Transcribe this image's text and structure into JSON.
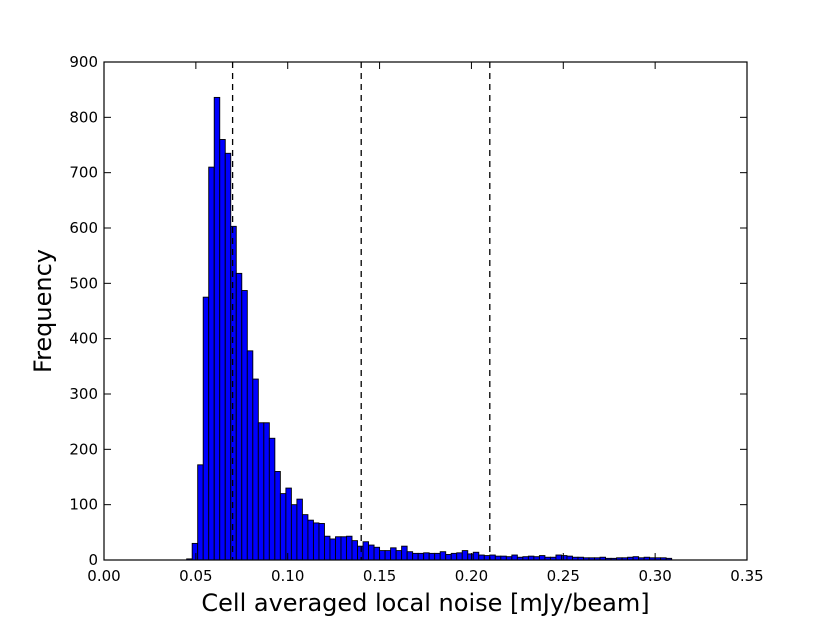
{
  "chart_data": {
    "type": "bar",
    "title": "",
    "xlabel": "Cell averaged local noise [mJy/beam]",
    "ylabel": "Frequency",
    "xlim": [
      0.0,
      0.35
    ],
    "ylim": [
      0,
      900
    ],
    "x_ticks": [
      "0.00",
      "0.05",
      "0.10",
      "0.15",
      "0.20",
      "0.25",
      "0.30",
      "0.35"
    ],
    "y_ticks": [
      "0",
      "100",
      "200",
      "300",
      "400",
      "500",
      "600",
      "700",
      "800",
      "900"
    ],
    "bar_color": "#0000ff",
    "edge_color": "#000000",
    "bins": {
      "start": 0.045,
      "width": 0.003,
      "counts": [
        2,
        30,
        172,
        475,
        710,
        836,
        760,
        735,
        603,
        518,
        487,
        378,
        327,
        248,
        248,
        220,
        160,
        120,
        130,
        100,
        110,
        82,
        72,
        67,
        66,
        43,
        38,
        42,
        42,
        43,
        35,
        25,
        33,
        27,
        23,
        17,
        17,
        22,
        17,
        25,
        15,
        12,
        12,
        13,
        12,
        12,
        15,
        10,
        12,
        13,
        17,
        11,
        14,
        9,
        8,
        9,
        7,
        7,
        6,
        9,
        5,
        6,
        7,
        6,
        8,
        5,
        5,
        9,
        8,
        7,
        5,
        5,
        4,
        4,
        4,
        5,
        3,
        3,
        4,
        4,
        5,
        6,
        4,
        5,
        4,
        4,
        4,
        3
      ]
    },
    "reference_lines": [
      {
        "x": 0.07,
        "style": "dashed"
      },
      {
        "x": 0.14,
        "style": "dashed"
      },
      {
        "x": 0.21,
        "style": "dashed"
      }
    ],
    "grid": false,
    "legend": false
  }
}
